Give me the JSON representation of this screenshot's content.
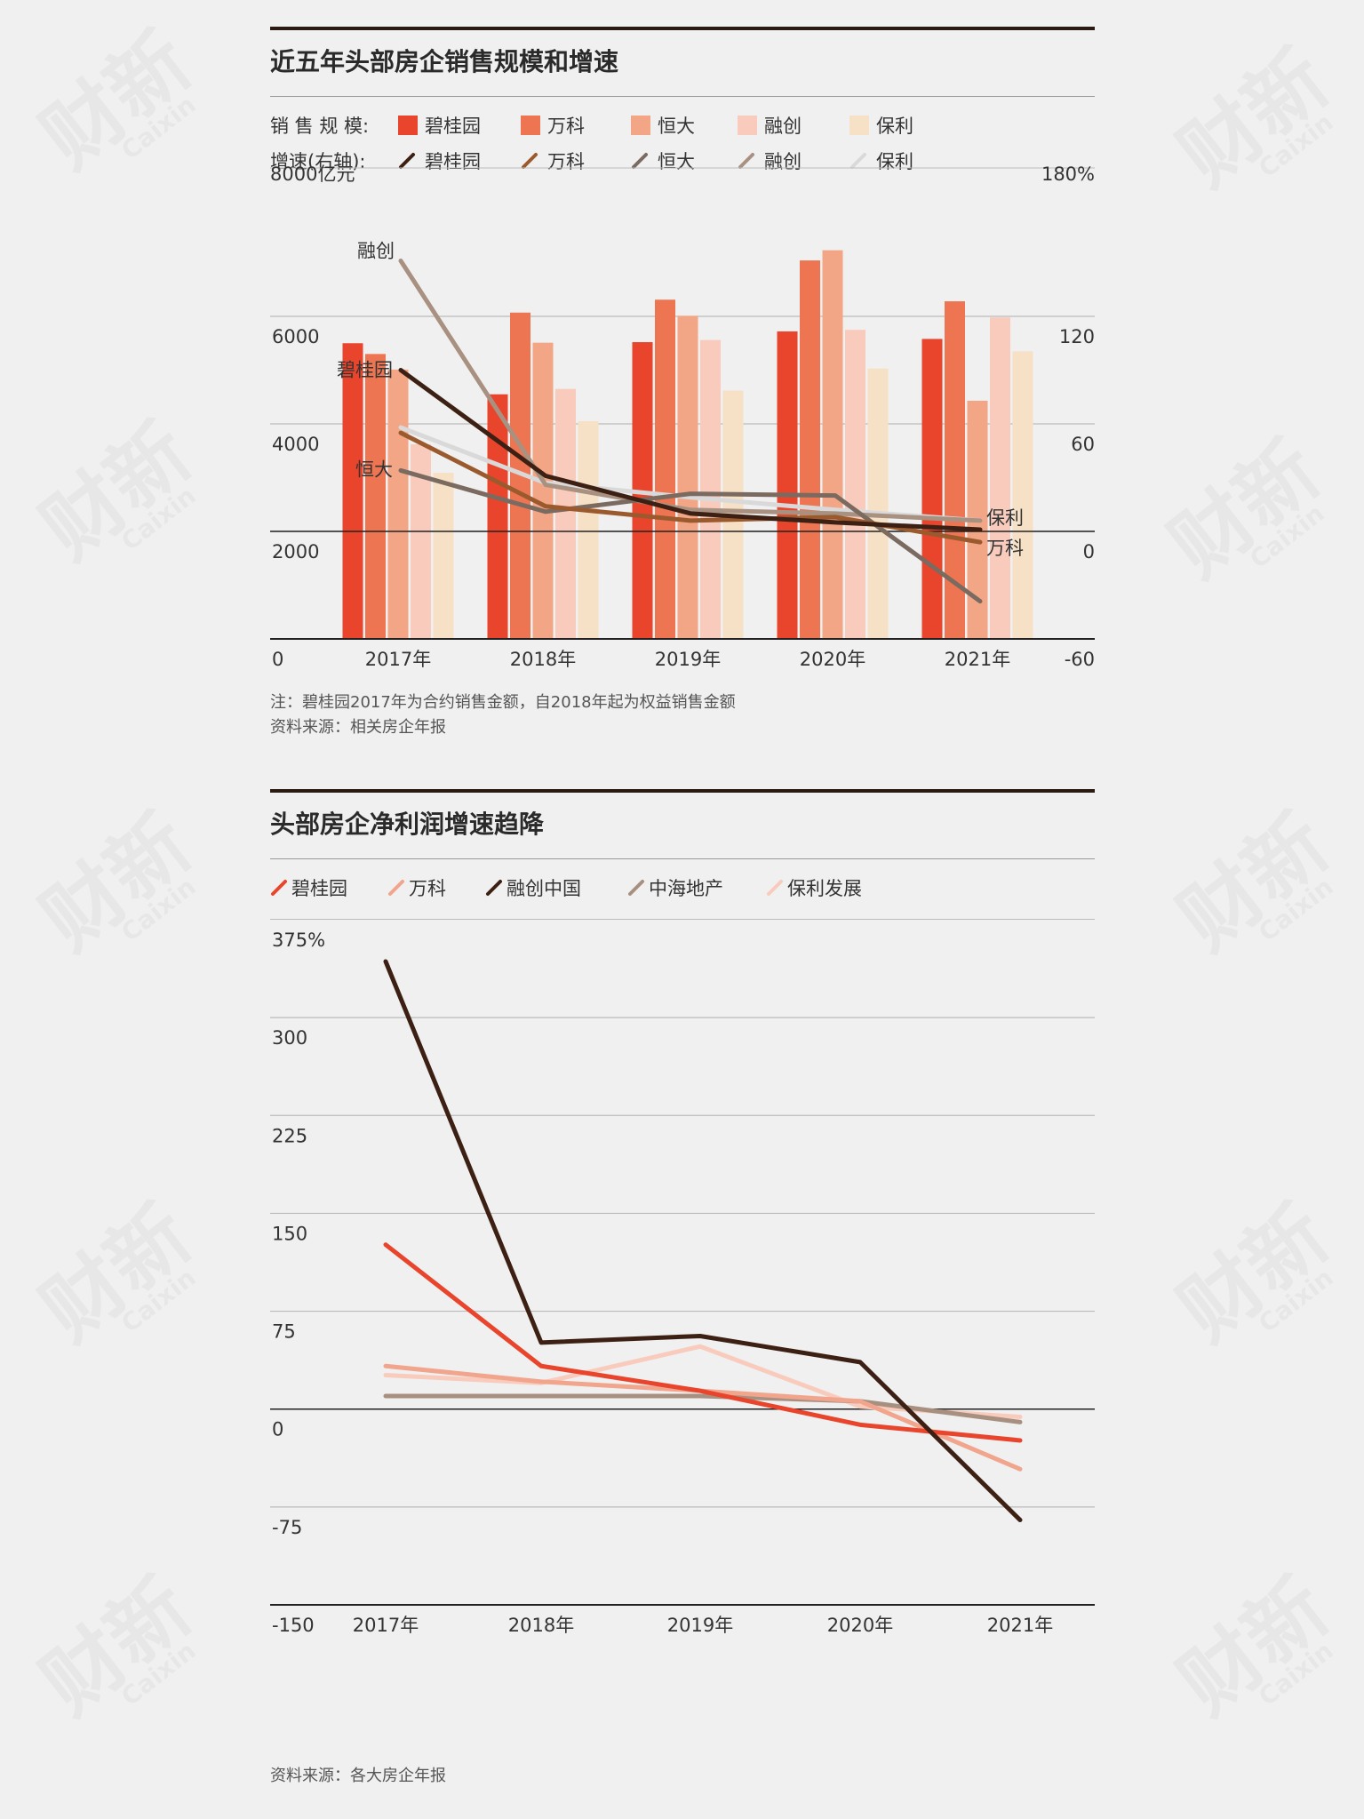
{
  "chart1": {
    "title": "近五年头部房企销售规模和增速",
    "legend_sales_label": "销 售 规 模:",
    "legend_growth_label": "增速(右轴):",
    "left_unit_label": "8000亿元",
    "right_top_label": "180%",
    "left_ticks": [
      "0",
      "2000",
      "4000",
      "6000"
    ],
    "right_ticks": [
      "-60",
      "0",
      "60",
      "120"
    ],
    "note": "注：碧桂园2017年为合约销售金额，自2018年起为权益销售金额",
    "source": "资料来源：相关房企年报",
    "inline_labels": {
      "rongchuang": "融创",
      "biguiyuan": "碧桂园",
      "hengda": "恒大",
      "baoli": "保利",
      "wanke": "万科"
    },
    "bar_colors": [
      "#e8452c",
      "#ee7551",
      "#f3a686",
      "#f9cbbd",
      "#f7e1c6"
    ],
    "line_colors": [
      "#3d2014",
      "#9b5a2e",
      "#7a6a60",
      "#a99181",
      "#d9d9d9"
    ]
  },
  "chart2": {
    "title": "头部房企净利润增速趋降",
    "y_ticks": [
      "-150",
      "-75",
      "0",
      "75",
      "150",
      "225",
      "300",
      "375%"
    ],
    "source": "资料来源：各大房企年报",
    "line_colors": [
      "#e8452c",
      "#f0a58c",
      "#3d2014",
      "#a89080",
      "#f9cbbd"
    ]
  },
  "chart_data": [
    {
      "type": "bar",
      "title": "近五年头部房企销售规模和增速",
      "categories": [
        "2017年",
        "2018年",
        "2019年",
        "2020年",
        "2021年"
      ],
      "ylim": [
        0,
        8000
      ],
      "y_unit": "亿元",
      "series": [
        {
          "name": "碧桂园",
          "values": [
            5500,
            4550,
            5520,
            5720,
            5580
          ]
        },
        {
          "name": "万科",
          "values": [
            5300,
            6070,
            6310,
            7040,
            6280
          ]
        },
        {
          "name": "恒大",
          "values": [
            5010,
            5510,
            6010,
            7230,
            4430
          ]
        },
        {
          "name": "融创",
          "values": [
            3620,
            4650,
            5560,
            5750,
            5980
          ]
        },
        {
          "name": "保利",
          "values": [
            3090,
            4050,
            4620,
            5030,
            5350
          ]
        }
      ],
      "line_series": {
        "axis": "right",
        "ylim": [
          -60,
          180
        ],
        "series": [
          {
            "name": "碧桂园",
            "values": [
              90,
              31,
              10,
              5,
              1
            ]
          },
          {
            "name": "万科",
            "values": [
              55,
              14,
              6,
              8,
              -6
            ]
          },
          {
            "name": "恒大",
            "values": [
              34,
              11,
              21,
              20,
              -39
            ]
          },
          {
            "name": "融创",
            "values": [
              151,
              26,
              12,
              10,
              6
            ]
          },
          {
            "name": "保利",
            "values": [
              58,
              27,
              19,
              12,
              6
            ]
          }
        ]
      }
    },
    {
      "type": "line",
      "title": "头部房企净利润增速趋降",
      "categories": [
        "2017年",
        "2018年",
        "2019年",
        "2020年",
        "2021年"
      ],
      "ylim": [
        -150,
        375
      ],
      "y_unit": "%",
      "series": [
        {
          "name": "碧桂园",
          "values": [
            126,
            33,
            14,
            -12,
            -24
          ]
        },
        {
          "name": "万科",
          "values": [
            33,
            21,
            14,
            6,
            -46
          ]
        },
        {
          "name": "融创中国",
          "values": [
            343,
            51,
            56,
            36,
            -85
          ]
        },
        {
          "name": "中海地产",
          "values": [
            10,
            10,
            10,
            6,
            -10
          ]
        },
        {
          "name": "保利发展",
          "values": [
            26,
            20,
            48,
            2,
            -6
          ]
        }
      ]
    }
  ]
}
